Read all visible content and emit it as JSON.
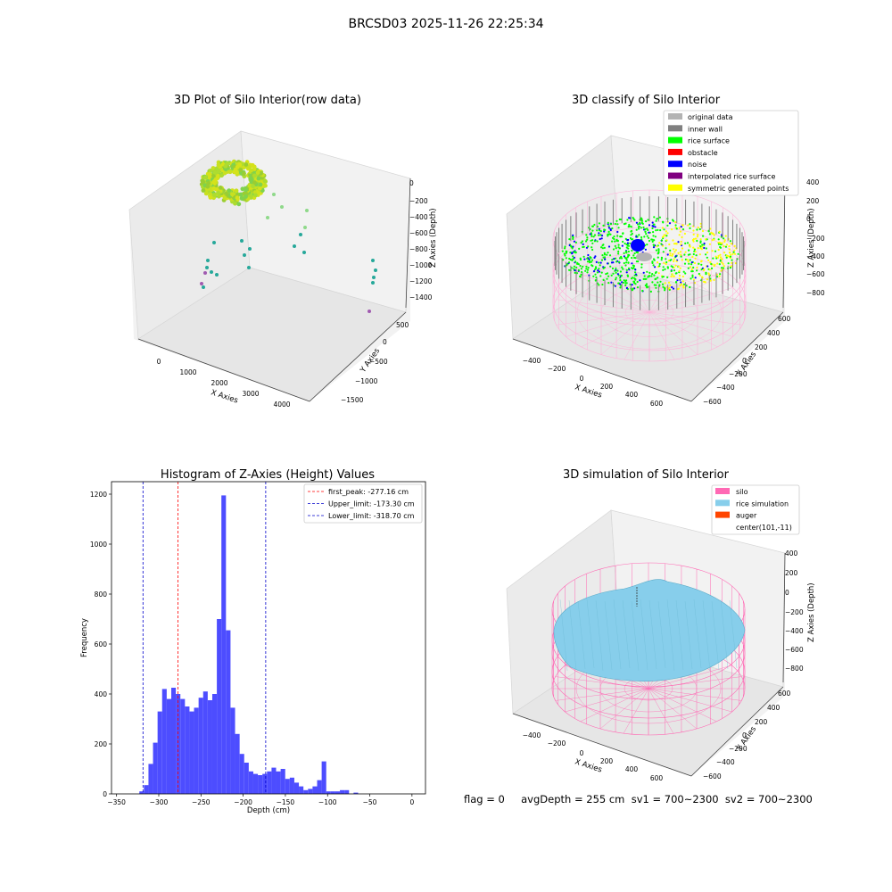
{
  "figure": {
    "suptitle": "BRCSD03 2025-11-26 22:25:34",
    "footer": "flag = 0     avgDepth = 255 cm  sv1 = 700~2300  sv2 = 700~2300"
  },
  "colors": {
    "hist_bar": "#4d4dff",
    "first_peak": "#ff0000",
    "limit": "#0000cc",
    "silo": "#ff69b4",
    "rice_simulation": "#87ceeb",
    "auger": "#ff4500",
    "original": "#b3b3b3",
    "inner_wall": "#808080",
    "rice_surface": "#00ff00",
    "obstacle": "#ff0000",
    "noise": "#0000ff",
    "interpolated": "#800080",
    "symmetric": "#ffff00"
  },
  "panels": {
    "p1": {
      "title": "3D Plot of Silo Interior(row data)",
      "xlabel": "X Axies",
      "ylabel": "Y Axies",
      "zlabel": "Z Axies (Depth)",
      "xticks": [
        "0",
        "1000",
        "2000",
        "3000",
        "4000"
      ],
      "yticks": [
        "500",
        "0",
        "−500",
        "−1000",
        "−1500"
      ],
      "zticks": [
        "0",
        "−200",
        "−400",
        "−600",
        "−800",
        "−1000",
        "−1200",
        "−1400"
      ]
    },
    "p2": {
      "title": "3D classify of Silo Interior",
      "xlabel": "X Axies",
      "ylabel": "Y Axies",
      "zlabel": "Z Axies (Depth)",
      "xticks": [
        "−400",
        "−200",
        "0",
        "200",
        "400",
        "600"
      ],
      "yticks": [
        "600",
        "400",
        "200",
        "0",
        "−200",
        "−400",
        "−600"
      ],
      "zticks": [
        "400",
        "200",
        "0",
        "−200",
        "−400",
        "−600",
        "−800"
      ],
      "legend": [
        {
          "label": "original data",
          "color": "#b3b3b3"
        },
        {
          "label": "inner wall",
          "color": "#808080"
        },
        {
          "label": "rice surface",
          "color": "#00ff00"
        },
        {
          "label": "obstacle",
          "color": "#ff0000"
        },
        {
          "label": "noise",
          "color": "#0000ff"
        },
        {
          "label": "interpolated rice surface",
          "color": "#800080"
        },
        {
          "label": "symmetric generated points",
          "color": "#ffff00"
        }
      ]
    },
    "p4": {
      "title": "3D simulation of Silo Interior",
      "xlabel": "X Axies",
      "ylabel": "Y Axies",
      "zlabel": "Z Axies (Depth)",
      "xticks": [
        "−400",
        "−200",
        "0",
        "200",
        "400",
        "600"
      ],
      "yticks": [
        "600",
        "400",
        "200",
        "0",
        "−200",
        "−400",
        "−600"
      ],
      "zticks": [
        "400",
        "200",
        "0",
        "−200",
        "−400",
        "−600",
        "−800"
      ],
      "legend": [
        {
          "label": "silo",
          "color": "#ff69b4"
        },
        {
          "label": "rice simulation",
          "color": "#87ceeb"
        },
        {
          "label": "auger",
          "color": "#ff4500"
        },
        {
          "label": "center(101,-11)",
          "color": ""
        }
      ]
    }
  },
  "chart_data": [
    {
      "type": "bar",
      "title": "Histogram of Z-Axies (Height) Values",
      "xlabel": "Depth (cm)",
      "ylabel": "Frequency",
      "xlim": [
        -356,
        16
      ],
      "ylim": [
        0,
        1250
      ],
      "xticks": [
        -350,
        -300,
        -250,
        -200,
        -150,
        -100,
        -50,
        0
      ],
      "yticks": [
        0,
        200,
        400,
        600,
        800,
        1000,
        1200
      ],
      "bin_width": 5.4,
      "bin_edges_start": -323,
      "counts": [
        10,
        35,
        120,
        205,
        330,
        420,
        380,
        425,
        400,
        380,
        350,
        330,
        345,
        385,
        410,
        375,
        400,
        700,
        1195,
        655,
        345,
        240,
        160,
        125,
        90,
        80,
        75,
        80,
        90,
        105,
        90,
        100,
        60,
        65,
        45,
        30,
        15,
        20,
        30,
        55,
        130,
        10,
        10,
        10,
        15,
        15,
        0,
        5
      ],
      "lines": [
        {
          "label": "first_peak: -277.16 cm",
          "x": -277.16,
          "color": "#ff0000"
        },
        {
          "label": "Upper_limit: -173.30 cm",
          "x": -173.3,
          "color": "#0000cc"
        },
        {
          "label": "Lower_limit: -318.70 cm",
          "x": -318.7,
          "color": "#0000cc"
        }
      ],
      "legend_loc": "upper right"
    }
  ]
}
